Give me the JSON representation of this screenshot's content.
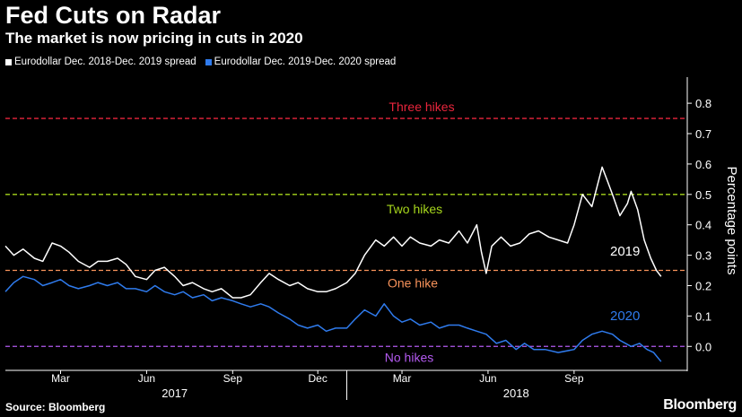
{
  "header": {
    "title": "Fed Cuts on Radar",
    "subtitle": "The market is now pricing in cuts in 2020"
  },
  "footer": {
    "source": "Source: Bloomberg",
    "brand": "Bloomberg"
  },
  "colors": {
    "background": "#000000",
    "series_2019": "#ffffff",
    "series_2020": "#2f7bed",
    "three_hikes": "#e8253c",
    "two_hikes": "#a6d61c",
    "one_hike": "#f7925a",
    "no_hikes": "#b35af0"
  },
  "chart_data": {
    "type": "line",
    "title": "Fed Cuts on Radar",
    "subtitle": "The market is now pricing in cuts in 2020",
    "ylabel": "Percentage points",
    "ylim": [
      -0.07,
      0.88
    ],
    "yticks": [
      "0.8",
      "0.7",
      "0.6",
      "0.5",
      "0.4",
      "0.3",
      "0.2",
      "0.1",
      "0.0"
    ],
    "ytick_values": [
      0.8,
      0.7,
      0.6,
      0.5,
      0.4,
      0.3,
      0.2,
      0.1,
      0.0
    ],
    "xlim": [
      "2017-01-01",
      "2018-12-31"
    ],
    "month_ticks": [
      {
        "label": "Mar",
        "date": "2017-03-01"
      },
      {
        "label": "Jun",
        "date": "2017-06-01"
      },
      {
        "label": "Sep",
        "date": "2017-09-01"
      },
      {
        "label": "Dec",
        "date": "2017-12-01"
      },
      {
        "label": "Mar",
        "date": "2018-03-01"
      },
      {
        "label": "Jun",
        "date": "2018-06-01"
      },
      {
        "label": "Sep",
        "date": "2018-09-01"
      }
    ],
    "year_labels": [
      {
        "label": "2017",
        "date": "2017-07-01"
      },
      {
        "label": "2018",
        "date": "2018-07-01"
      }
    ],
    "year_divider": "2018-01-01",
    "legend_position": "top-left",
    "grid": false,
    "reference_lines": [
      {
        "label": "Three hikes",
        "value": 0.75,
        "color": "#e8253c"
      },
      {
        "label": "Two hikes",
        "value": 0.5,
        "color": "#a6d61c"
      },
      {
        "label": "One hike",
        "value": 0.25,
        "color": "#f7925a"
      },
      {
        "label": "No hikes",
        "value": 0.0,
        "color": "#b35af0"
      }
    ],
    "series": [
      {
        "name": "Eurodollar Dec. 2018-Dec. 2019 spread",
        "end_label": "2019",
        "color": "#ffffff",
        "points": [
          [
            "2017-01-01",
            0.33
          ],
          [
            "2017-01-10",
            0.3
          ],
          [
            "2017-01-20",
            0.32
          ],
          [
            "2017-02-01",
            0.29
          ],
          [
            "2017-02-10",
            0.28
          ],
          [
            "2017-02-20",
            0.34
          ],
          [
            "2017-03-01",
            0.33
          ],
          [
            "2017-03-10",
            0.31
          ],
          [
            "2017-03-20",
            0.28
          ],
          [
            "2017-04-01",
            0.26
          ],
          [
            "2017-04-10",
            0.28
          ],
          [
            "2017-04-20",
            0.28
          ],
          [
            "2017-05-01",
            0.29
          ],
          [
            "2017-05-10",
            0.27
          ],
          [
            "2017-05-20",
            0.23
          ],
          [
            "2017-06-01",
            0.22
          ],
          [
            "2017-06-10",
            0.25
          ],
          [
            "2017-06-20",
            0.26
          ],
          [
            "2017-07-01",
            0.23
          ],
          [
            "2017-07-10",
            0.2
          ],
          [
            "2017-07-20",
            0.21
          ],
          [
            "2017-08-01",
            0.19
          ],
          [
            "2017-08-10",
            0.18
          ],
          [
            "2017-08-20",
            0.19
          ],
          [
            "2017-09-01",
            0.16
          ],
          [
            "2017-09-10",
            0.16
          ],
          [
            "2017-09-20",
            0.17
          ],
          [
            "2017-10-01",
            0.21
          ],
          [
            "2017-10-10",
            0.24
          ],
          [
            "2017-10-20",
            0.22
          ],
          [
            "2017-11-01",
            0.2
          ],
          [
            "2017-11-10",
            0.21
          ],
          [
            "2017-11-20",
            0.19
          ],
          [
            "2017-12-01",
            0.18
          ],
          [
            "2017-12-10",
            0.18
          ],
          [
            "2017-12-20",
            0.19
          ],
          [
            "2018-01-01",
            0.21
          ],
          [
            "2018-01-10",
            0.24
          ],
          [
            "2018-01-20",
            0.3
          ],
          [
            "2018-02-01",
            0.35
          ],
          [
            "2018-02-10",
            0.33
          ],
          [
            "2018-02-20",
            0.36
          ],
          [
            "2018-03-01",
            0.33
          ],
          [
            "2018-03-10",
            0.36
          ],
          [
            "2018-03-20",
            0.34
          ],
          [
            "2018-04-01",
            0.33
          ],
          [
            "2018-04-10",
            0.35
          ],
          [
            "2018-04-20",
            0.34
          ],
          [
            "2018-05-01",
            0.38
          ],
          [
            "2018-05-10",
            0.34
          ],
          [
            "2018-05-20",
            0.4
          ],
          [
            "2018-05-25",
            0.31
          ],
          [
            "2018-05-30",
            0.24
          ],
          [
            "2018-06-05",
            0.33
          ],
          [
            "2018-06-15",
            0.36
          ],
          [
            "2018-06-25",
            0.33
          ],
          [
            "2018-07-05",
            0.34
          ],
          [
            "2018-07-15",
            0.37
          ],
          [
            "2018-07-25",
            0.38
          ],
          [
            "2018-08-05",
            0.36
          ],
          [
            "2018-08-15",
            0.35
          ],
          [
            "2018-08-25",
            0.34
          ],
          [
            "2018-09-01",
            0.4
          ],
          [
            "2018-09-10",
            0.5
          ],
          [
            "2018-09-20",
            0.46
          ],
          [
            "2018-10-01",
            0.59
          ],
          [
            "2018-10-06",
            0.55
          ],
          [
            "2018-10-12",
            0.5
          ],
          [
            "2018-10-20",
            0.43
          ],
          [
            "2018-10-28",
            0.47
          ],
          [
            "2018-11-01",
            0.51
          ],
          [
            "2018-11-08",
            0.45
          ],
          [
            "2018-11-15",
            0.35
          ],
          [
            "2018-11-22",
            0.29
          ],
          [
            "2018-11-28",
            0.25
          ],
          [
            "2018-12-03",
            0.23
          ]
        ]
      },
      {
        "name": "Eurodollar Dec. 2019-Dec. 2020 spread",
        "end_label": "2020",
        "color": "#2f7bed",
        "points": [
          [
            "2017-01-01",
            0.18
          ],
          [
            "2017-01-10",
            0.21
          ],
          [
            "2017-01-20",
            0.23
          ],
          [
            "2017-02-01",
            0.22
          ],
          [
            "2017-02-10",
            0.2
          ],
          [
            "2017-02-20",
            0.21
          ],
          [
            "2017-03-01",
            0.22
          ],
          [
            "2017-03-10",
            0.2
          ],
          [
            "2017-03-20",
            0.19
          ],
          [
            "2017-04-01",
            0.2
          ],
          [
            "2017-04-10",
            0.21
          ],
          [
            "2017-04-20",
            0.2
          ],
          [
            "2017-05-01",
            0.21
          ],
          [
            "2017-05-10",
            0.19
          ],
          [
            "2017-05-20",
            0.19
          ],
          [
            "2017-06-01",
            0.18
          ],
          [
            "2017-06-10",
            0.2
          ],
          [
            "2017-06-20",
            0.18
          ],
          [
            "2017-07-01",
            0.17
          ],
          [
            "2017-07-10",
            0.18
          ],
          [
            "2017-07-20",
            0.16
          ],
          [
            "2017-08-01",
            0.17
          ],
          [
            "2017-08-10",
            0.15
          ],
          [
            "2017-08-20",
            0.16
          ],
          [
            "2017-09-01",
            0.15
          ],
          [
            "2017-09-10",
            0.14
          ],
          [
            "2017-09-20",
            0.13
          ],
          [
            "2017-10-01",
            0.14
          ],
          [
            "2017-10-10",
            0.13
          ],
          [
            "2017-10-20",
            0.11
          ],
          [
            "2017-11-01",
            0.09
          ],
          [
            "2017-11-10",
            0.07
          ],
          [
            "2017-11-20",
            0.06
          ],
          [
            "2017-12-01",
            0.07
          ],
          [
            "2017-12-10",
            0.05
          ],
          [
            "2017-12-20",
            0.06
          ],
          [
            "2018-01-01",
            0.06
          ],
          [
            "2018-01-10",
            0.09
          ],
          [
            "2018-01-20",
            0.12
          ],
          [
            "2018-02-01",
            0.1
          ],
          [
            "2018-02-10",
            0.14
          ],
          [
            "2018-02-20",
            0.1
          ],
          [
            "2018-03-01",
            0.08
          ],
          [
            "2018-03-10",
            0.09
          ],
          [
            "2018-03-20",
            0.07
          ],
          [
            "2018-04-01",
            0.08
          ],
          [
            "2018-04-10",
            0.06
          ],
          [
            "2018-04-20",
            0.07
          ],
          [
            "2018-05-01",
            0.07
          ],
          [
            "2018-05-10",
            0.06
          ],
          [
            "2018-05-20",
            0.05
          ],
          [
            "2018-05-30",
            0.04
          ],
          [
            "2018-06-10",
            0.01
          ],
          [
            "2018-06-20",
            0.02
          ],
          [
            "2018-07-01",
            -0.01
          ],
          [
            "2018-07-10",
            0.01
          ],
          [
            "2018-07-20",
            -0.01
          ],
          [
            "2018-08-01",
            -0.01
          ],
          [
            "2018-08-15",
            -0.02
          ],
          [
            "2018-09-01",
            -0.01
          ],
          [
            "2018-09-10",
            0.02
          ],
          [
            "2018-09-20",
            0.04
          ],
          [
            "2018-10-01",
            0.05
          ],
          [
            "2018-10-12",
            0.04
          ],
          [
            "2018-10-20",
            0.02
          ],
          [
            "2018-11-01",
            0.0
          ],
          [
            "2018-11-10",
            0.01
          ],
          [
            "2018-11-18",
            -0.01
          ],
          [
            "2018-11-25",
            -0.02
          ],
          [
            "2018-12-03",
            -0.05
          ]
        ]
      }
    ]
  }
}
